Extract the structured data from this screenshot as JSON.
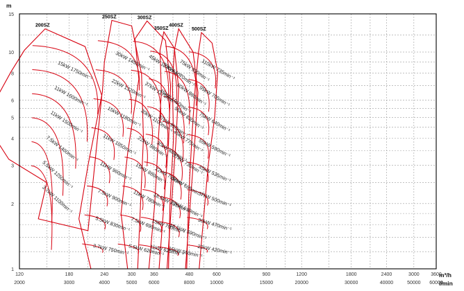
{
  "chart_data": {
    "type": "line",
    "title": "",
    "scale": "log-log",
    "grid": true,
    "y_axis": {
      "unit": "m",
      "range": [
        1,
        15
      ],
      "ticks": [
        "1",
        "2",
        "3",
        "4",
        "5",
        "6",
        "8",
        "10",
        "15"
      ]
    },
    "x_axis_primary": {
      "unit": "m³/h",
      "range": [
        120,
        3600
      ],
      "ticks": [
        "120",
        "180",
        "240",
        "300",
        "360",
        "480",
        "600",
        "900",
        "1200",
        "1800",
        "2400",
        "3000",
        "3600"
      ]
    },
    "x_axis_secondary": {
      "unit": "l/min",
      "ticks": [
        "2000",
        "3000",
        "4000",
        "5000",
        "6000",
        "8000",
        "10000",
        "15000",
        "20000",
        "30000",
        "40000",
        "50000",
        "60000"
      ]
    },
    "series": [
      {
        "name": "200SZ",
        "annotations": [
          "15kW 1750min⁻¹",
          "11kW 1600min⁻¹",
          "11kW 1500min⁻¹",
          "7.5kW 1400min⁻¹",
          "5.5kW 1250min⁻¹",
          "3.7kW 1100min⁻¹"
        ],
        "envelope": [
          [
            148,
            12.8
          ],
          [
            205,
            10.6
          ],
          [
            235,
            6.3
          ],
          [
            210,
            1.5
          ],
          [
            140,
            1.7
          ],
          [
            150,
            2.5
          ],
          [
            110,
            3.2
          ],
          [
            92,
            4.6
          ],
          [
            100,
            6.2
          ],
          [
            112,
            8.1
          ],
          [
            125,
            10.2
          ]
        ]
      },
      {
        "name": "250SZ",
        "annotations": [
          "30kW 1450min⁻¹",
          "22kW 1320min⁻¹",
          "15kW 1180min⁻¹",
          "11kW 1050min⁻¹",
          "11kW 960min⁻¹",
          "7.5kW 900min⁻¹",
          "5.5kW 830min⁻¹",
          "3.7kW 750min⁻¹"
        ],
        "envelope": [
          [
            255,
            14.0
          ],
          [
            300,
            13.2
          ],
          [
            325,
            7.9
          ],
          [
            330,
            4.0
          ],
          [
            315,
            1.0
          ],
          [
            215,
            1.0
          ],
          [
            195,
            1.7
          ],
          [
            210,
            3.0
          ],
          [
            236,
            6.5
          ],
          [
            240,
            9.0
          ]
        ]
      },
      {
        "name": "300SZ",
        "annotations": [
          "45kW 1240min⁻¹",
          "37kW 1170min⁻¹",
          "30kW 1100min⁻¹",
          "22kW 980min⁻¹",
          "15kW 880min⁻¹",
          "11kW 780min⁻¹",
          "7.5kW 690min⁻¹",
          "5.5kW 620min⁻¹"
        ],
        "envelope": [
          [
            340,
            13.9
          ],
          [
            395,
            11.3
          ],
          [
            412,
            7.0
          ],
          [
            405,
            3.8
          ],
          [
            375,
            1.0
          ],
          [
            290,
            1.0
          ],
          [
            275,
            1.8
          ],
          [
            290,
            3.4
          ],
          [
            318,
            7.5
          ],
          [
            308,
            11.5
          ]
        ]
      },
      {
        "name": "350SZ",
        "annotations": [
          "55kW 1070min⁻¹",
          "45kW 1010min⁻¹",
          "37kW 950min⁻¹",
          "30kW 880min⁻¹",
          "22kW 795min⁻¹",
          "18.5kW 735min⁻¹",
          "15kW 700min⁻¹",
          "11kW 625min⁻¹"
        ],
        "envelope": [
          [
            390,
            12.4
          ],
          [
            425,
            10.4
          ],
          [
            440,
            6.8
          ],
          [
            430,
            3.8
          ],
          [
            400,
            1.0
          ],
          [
            345,
            1.0
          ],
          [
            362,
            2.0
          ],
          [
            372,
            3.8
          ],
          [
            382,
            6.5
          ],
          [
            378,
            10.2
          ]
        ]
      },
      {
        "name": "400SZ",
        "annotations": [
          "75kW 930min⁻¹",
          "60kW 880min⁻¹",
          "55kW 830min⁻¹",
          "45kW 775min⁻¹",
          "37kW 730min⁻¹",
          "30kW 685min⁻¹",
          "22kW 610min⁻¹",
          "18.5kW 590min⁻¹",
          "15kW 560min⁻¹"
        ],
        "envelope": [
          [
            440,
            12.8
          ],
          [
            495,
            10.0
          ],
          [
            515,
            6.5
          ],
          [
            500,
            3.6
          ],
          [
            465,
            1.0
          ],
          [
            405,
            1.0
          ],
          [
            410,
            2.0
          ],
          [
            422,
            4.0
          ],
          [
            418,
            7.2
          ],
          [
            425,
            10.2
          ]
        ]
      },
      {
        "name": "500SZ",
        "annotations": [
          "110kW 735min⁻¹",
          "95kW 705min⁻¹",
          "75kW 640min⁻¹",
          "55kW 590min⁻¹",
          "45kW 535min⁻¹",
          "37kW 500min⁻¹",
          "30kW 470min⁻¹",
          "22kW 420min⁻¹"
        ],
        "envelope": [
          [
            530,
            12.3
          ],
          [
            578,
            11.0
          ],
          [
            605,
            8.1
          ],
          [
            590,
            5.0
          ],
          [
            560,
            3.0
          ],
          [
            520,
            1.0
          ],
          [
            470,
            1.0
          ],
          [
            478,
            2.2
          ],
          [
            492,
            4.4
          ],
          [
            505,
            7.2
          ],
          [
            518,
            10.1
          ]
        ]
      }
    ],
    "curve_color": "#d7000f",
    "grid_color": "#9c9c9c",
    "annotation_color": "#222222"
  }
}
